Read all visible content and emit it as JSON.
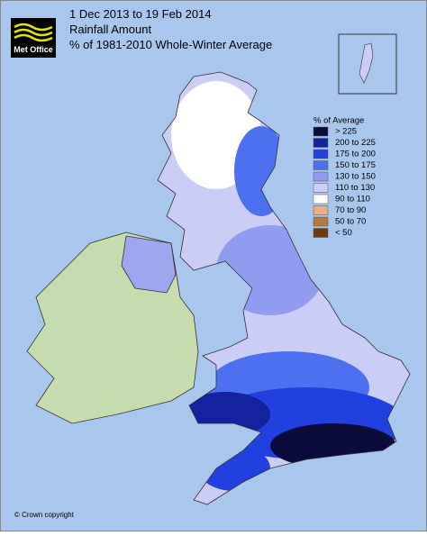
{
  "header": {
    "title_lines": [
      "1 Dec 2013 to 19 Feb 2014",
      "Rainfall Amount",
      "% of 1981-2010 Whole-Winter Average"
    ]
  },
  "logo": {
    "text": "Met Office"
  },
  "legend": {
    "title": "% of Average",
    "items": [
      {
        "label": "> 225",
        "color": "#0b0b3c"
      },
      {
        "label": "200 to 225",
        "color": "#1422a0"
      },
      {
        "label": "175 to 200",
        "color": "#2240e0"
      },
      {
        "label": "150 to 175",
        "color": "#4c70f0"
      },
      {
        "label": "130 to 150",
        "color": "#909cf0"
      },
      {
        "label": "110 to 130",
        "color": "#cacdf5"
      },
      {
        "label": "90 to 110",
        "color": "#ffffff"
      },
      {
        "label": "70 to 90",
        "color": "#e9b182"
      },
      {
        "label": "50 to 70",
        "color": "#b07842"
      },
      {
        "label": "< 50",
        "color": "#6a3a10"
      }
    ]
  },
  "footer": {
    "copyright": "© Crown copyright"
  }
}
